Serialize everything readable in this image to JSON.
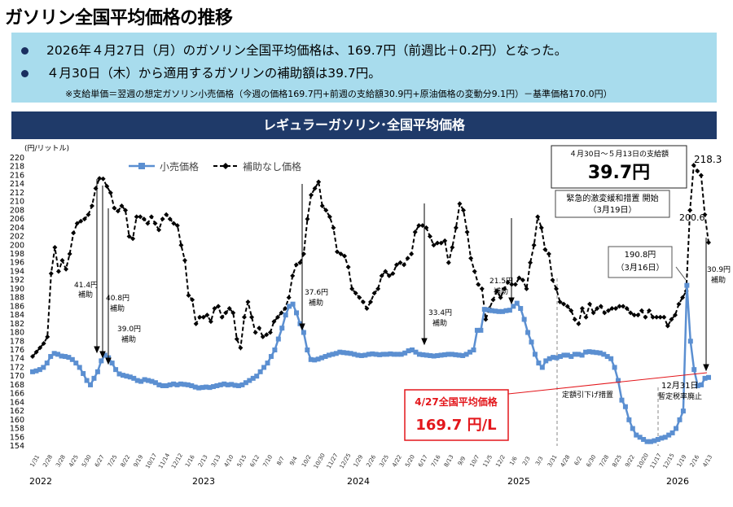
{
  "header": {
    "title": "ガソリン全国平均価格の推移",
    "bullet1": "2026年４月27日（月）のガソリン全国平均価格は、169.7円（前週比＋0.2円）となった。",
    "bullet2": "４月30日（木）から適用するガソリンの補助額は39.7円。",
    "note": "※支給単価＝翌週の想定ガソリン小売価格（今週の価格169.7円+前週の支給額30.9円+原油価格の変動分9.1円）－基準価格170.0円）"
  },
  "chart_title": "レギュラーガソリン･全国平均価格",
  "colors": {
    "retail": "#5b8fd1",
    "unsubsidized": "#000000",
    "banner": "#1f3a69",
    "summary_bg": "#a8dced",
    "highlight": "#e3161b"
  },
  "chart_data": {
    "type": "line",
    "y_unit_label": "(円/リットル)",
    "ylim": [
      154,
      220
    ],
    "y_tick_step": 2,
    "x_tick_labels": [
      "1/31",
      "2/28",
      "3/28",
      "4/25",
      "5/30",
      "6/27",
      "7/25",
      "8/22",
      "9/19",
      "10/17",
      "11/14",
      "12/12",
      "1/16",
      "2/13",
      "3/13",
      "4/10",
      "5/15",
      "6/12",
      "7/10",
      "8/7",
      "9/4",
      "10/2",
      "10/30",
      "11/27",
      "12/25",
      "1/29",
      "2/26",
      "3/25",
      "4/22",
      "5/20",
      "6/17",
      "7/16",
      "8/13",
      "9/9",
      "10/7",
      "11/5",
      "12/2",
      "1/6",
      "2/3",
      "3/3",
      "3/31",
      "4/28",
      "6/2",
      "6/30",
      "7/28",
      "8/25",
      "9/22",
      "10/20",
      "11/17",
      "12/15",
      "1/19",
      "2/16",
      "4/13"
    ],
    "year_labels": [
      {
        "label": "2022",
        "at_index": 0
      },
      {
        "label": "2023",
        "at_index": 10
      },
      {
        "label": "2024",
        "at_index": 20
      },
      {
        "label": "2025",
        "at_index": 30
      },
      {
        "label": "2026",
        "at_index": 40
      }
    ],
    "series": [
      {
        "name": "小売価格",
        "color": "#5b8fd1",
        "marker": "square",
        "values": [
          171.0,
          171.2,
          171.5,
          172.0,
          173.0,
          174.5,
          175.2,
          175.0,
          174.6,
          174.5,
          174.3,
          173.8,
          173.0,
          172.0,
          170.6,
          169.0,
          168.0,
          169.5,
          171.0,
          173.5,
          174.8,
          174.2,
          173.0,
          171.5,
          170.5,
          170.2,
          170.0,
          169.8,
          169.5,
          169.0,
          168.8,
          169.2,
          169.0,
          168.8,
          168.5,
          168.0,
          167.8,
          167.8,
          168.0,
          168.2,
          168.0,
          168.2,
          168.1,
          168.0,
          167.8,
          167.5,
          167.3,
          167.4,
          167.5,
          167.4,
          167.6,
          167.8,
          168.0,
          168.2,
          168.0,
          168.1,
          167.9,
          167.8,
          168.0,
          168.5,
          169.0,
          169.5,
          170.0,
          171.0,
          172.0,
          173.0,
          174.5,
          176.0,
          178.5,
          181.0,
          184.0,
          186.0,
          186.5,
          184.5,
          182.0,
          180.0,
          176.0,
          173.8,
          173.7,
          173.9,
          174.2,
          174.5,
          174.8,
          175.0,
          175.2,
          175.5,
          175.4,
          175.3,
          175.2,
          175.0,
          174.8,
          174.7,
          174.8,
          175.0,
          175.1,
          175.0,
          174.9,
          175.0,
          175.0,
          175.1,
          175.0,
          175.0,
          175.0,
          175.3,
          175.8,
          176.0,
          175.5,
          175.0,
          174.9,
          174.8,
          174.7,
          174.6,
          174.7,
          174.8,
          174.9,
          175.0,
          175.0,
          174.9,
          174.8,
          174.7,
          175.0,
          175.5,
          176.0,
          180.5,
          180.5,
          185.3,
          185.2,
          185.0,
          184.9,
          184.8,
          184.8,
          185.0,
          185.1,
          186.0,
          186.7,
          185.5,
          183.0,
          180.0,
          177.8,
          175.0,
          173.0,
          172.0,
          173.5,
          174.0,
          174.3,
          174.2,
          174.5,
          174.8,
          174.8,
          174.5,
          175.0,
          175.0,
          174.8,
          175.5,
          175.6,
          175.5,
          175.4,
          175.3,
          175.0,
          174.5,
          174.0,
          172.0,
          169.0,
          164.5,
          163.0,
          160.0,
          158.0,
          156.5,
          156.0,
          155.5,
          155.0,
          155.0,
          155.2,
          155.5,
          155.8,
          156.0,
          156.5,
          157.0,
          158.0,
          160.0,
          162.0,
          190.8,
          178.0,
          171.5,
          167.8,
          168.0,
          169.5,
          169.7
        ]
      },
      {
        "name": "補助なし価格",
        "color": "#000000",
        "marker": "diamond",
        "values": [
          174.5,
          175.5,
          176.5,
          177.5,
          179.0,
          193.5,
          199.5,
          194.0,
          196.5,
          194.5,
          198.0,
          202.8,
          205.0,
          205.5,
          206.0,
          207.0,
          209.0,
          213.0,
          215.3,
          215.2,
          213.5,
          212.0,
          208.5,
          207.8,
          209.0,
          208.0,
          202.0,
          201.5,
          206.5,
          206.5,
          206.0,
          205.0,
          206.5,
          205.0,
          203.5,
          206.0,
          207.0,
          206.0,
          205.0,
          204.5,
          200.0,
          196.5,
          188.5,
          187.5,
          182.0,
          183.5,
          183.5,
          184.0,
          182.5,
          185.5,
          186.0,
          183.5,
          184.5,
          185.5,
          184.5,
          178.5,
          176.5,
          183.5,
          187.0,
          183.5,
          180.0,
          181.0,
          179.0,
          179.5,
          180.0,
          182.5,
          183.5,
          184.5,
          185.5,
          188.0,
          193.0,
          195.5,
          196.0,
          198.0,
          206.0,
          211.5,
          213.0,
          214.5,
          209.0,
          208.0,
          206.5,
          204.0,
          198.5,
          198.0,
          197.5,
          195.0,
          190.0,
          189.0,
          188.0,
          187.0,
          185.5,
          187.0,
          189.0,
          190.0,
          193.0,
          194.0,
          193.0,
          193.5,
          195.5,
          196.0,
          195.5,
          197.0,
          198.0,
          203.0,
          204.5,
          204.5,
          204.0,
          202.0,
          200.0,
          200.5,
          200.5,
          201.0,
          196.0,
          199.5,
          204.0,
          209.5,
          208.0,
          203.0,
          197.0,
          194.0,
          191.0,
          190.0,
          183.0,
          185.5,
          187.5,
          189.5,
          188.0,
          190.0,
          191.5,
          191.0,
          191.0,
          192.5,
          192.0,
          190.0,
          196.0,
          200.0,
          206.5,
          204.0,
          199.0,
          198.0,
          192.0,
          190.0,
          187.0,
          186.5,
          186.0,
          185.0,
          183.0,
          182.0,
          185.5,
          183.5,
          186.5,
          184.5,
          185.5,
          186.0,
          184.5,
          185.0,
          185.5,
          185.5,
          186.0,
          186.0,
          185.5,
          184.5,
          184.0,
          184.0,
          185.0,
          183.5,
          185.0,
          183.5,
          183.5,
          183.5,
          183.5,
          181.5,
          183.0,
          184.0,
          186.5,
          188.0,
          189.5,
          208.0,
          218.3,
          217.0,
          216.0,
          207.0,
          200.6
        ]
      }
    ]
  },
  "chart": {
    "legend_retail": "小売価格",
    "legend_unsub": "補助なし価格",
    "info_box": {
      "period": "４月30日～５月13日の支給額",
      "amount": "39.7円",
      "note_line1": "緊急的激変緩和措置 開始",
      "note_line2": "（3月19日）"
    },
    "annotations": {
      "a1_amount": "41.4円",
      "a1_word": "補助",
      "a2_amount": "40.8円",
      "a2_word": "補助",
      "a3_amount": "39.0円",
      "a3_word": "補助",
      "a4_amount": "37.6円",
      "a4_word": "補助",
      "a5_amount": "33.4円",
      "a5_word": "補助",
      "a6_amount": "21.5円",
      "a6_word": "補助",
      "a7_amount": "30.9円",
      "a7_word": "補助",
      "peak_retail": "190.8円",
      "peak_retail_date": "（3月16日）",
      "peak_unsub": "218.3",
      "last_unsub": "200.6",
      "fixed_cut": "定額引下げ措置",
      "tax_repeal_line1": "12月31日",
      "tax_repeal_line2": "暫定税率廃止",
      "latest_label": "4/27全国平均価格",
      "latest_value": "169.7 円/L"
    }
  }
}
